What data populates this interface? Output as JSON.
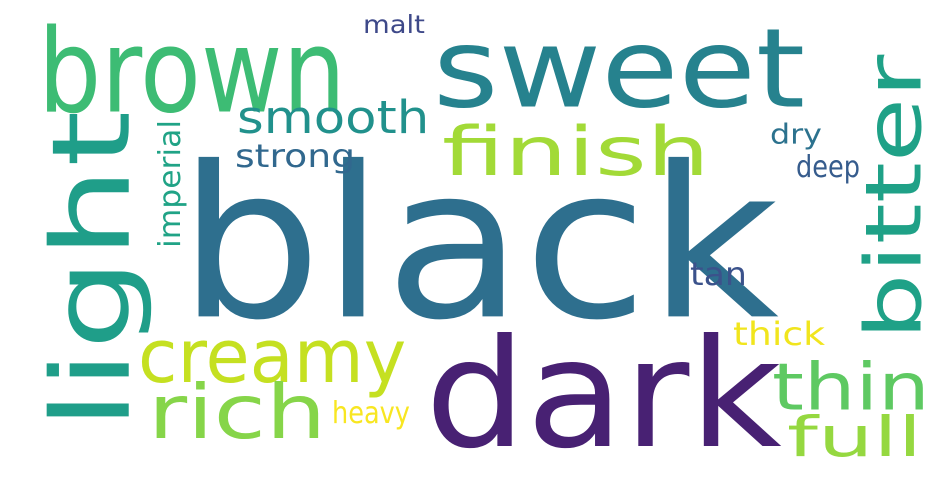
{
  "words": [
    {
      "text": "black",
      "color": "#2e6f8e",
      "rotated": false
    },
    {
      "text": "dark",
      "color": "#482173",
      "rotated": false
    },
    {
      "text": "sweet",
      "color": "#26828e",
      "rotated": false
    },
    {
      "text": "brown",
      "color": "#3dbc74",
      "rotated": false
    },
    {
      "text": "light",
      "color": "#1f9e89",
      "rotated": true
    },
    {
      "text": "bitter",
      "color": "#1fa187",
      "rotated": true
    },
    {
      "text": "finish",
      "color": "#a2da37",
      "rotated": false
    },
    {
      "text": "creamy",
      "color": "#c5e021",
      "rotated": false
    },
    {
      "text": "rich",
      "color": "#86d549",
      "rotated": false
    },
    {
      "text": "thin",
      "color": "#5ec962",
      "rotated": false
    },
    {
      "text": "full",
      "color": "#95d840",
      "rotated": false
    },
    {
      "text": "smooth",
      "color": "#21918c",
      "rotated": false
    },
    {
      "text": "strong",
      "color": "#31688e",
      "rotated": false
    },
    {
      "text": "imperial",
      "color": "#20a386",
      "rotated": true
    },
    {
      "text": "malt",
      "color": "#3e4989",
      "rotated": false
    },
    {
      "text": "dry",
      "color": "#2c728e",
      "rotated": false
    },
    {
      "text": "deep",
      "color": "#365c8d",
      "rotated": false
    },
    {
      "text": "tan",
      "color": "#3b528b",
      "rotated": false
    },
    {
      "text": "thick",
      "color": "#f1e51d",
      "rotated": false
    },
    {
      "text": "heavy",
      "color": "#f8e621",
      "rotated": false
    }
  ]
}
